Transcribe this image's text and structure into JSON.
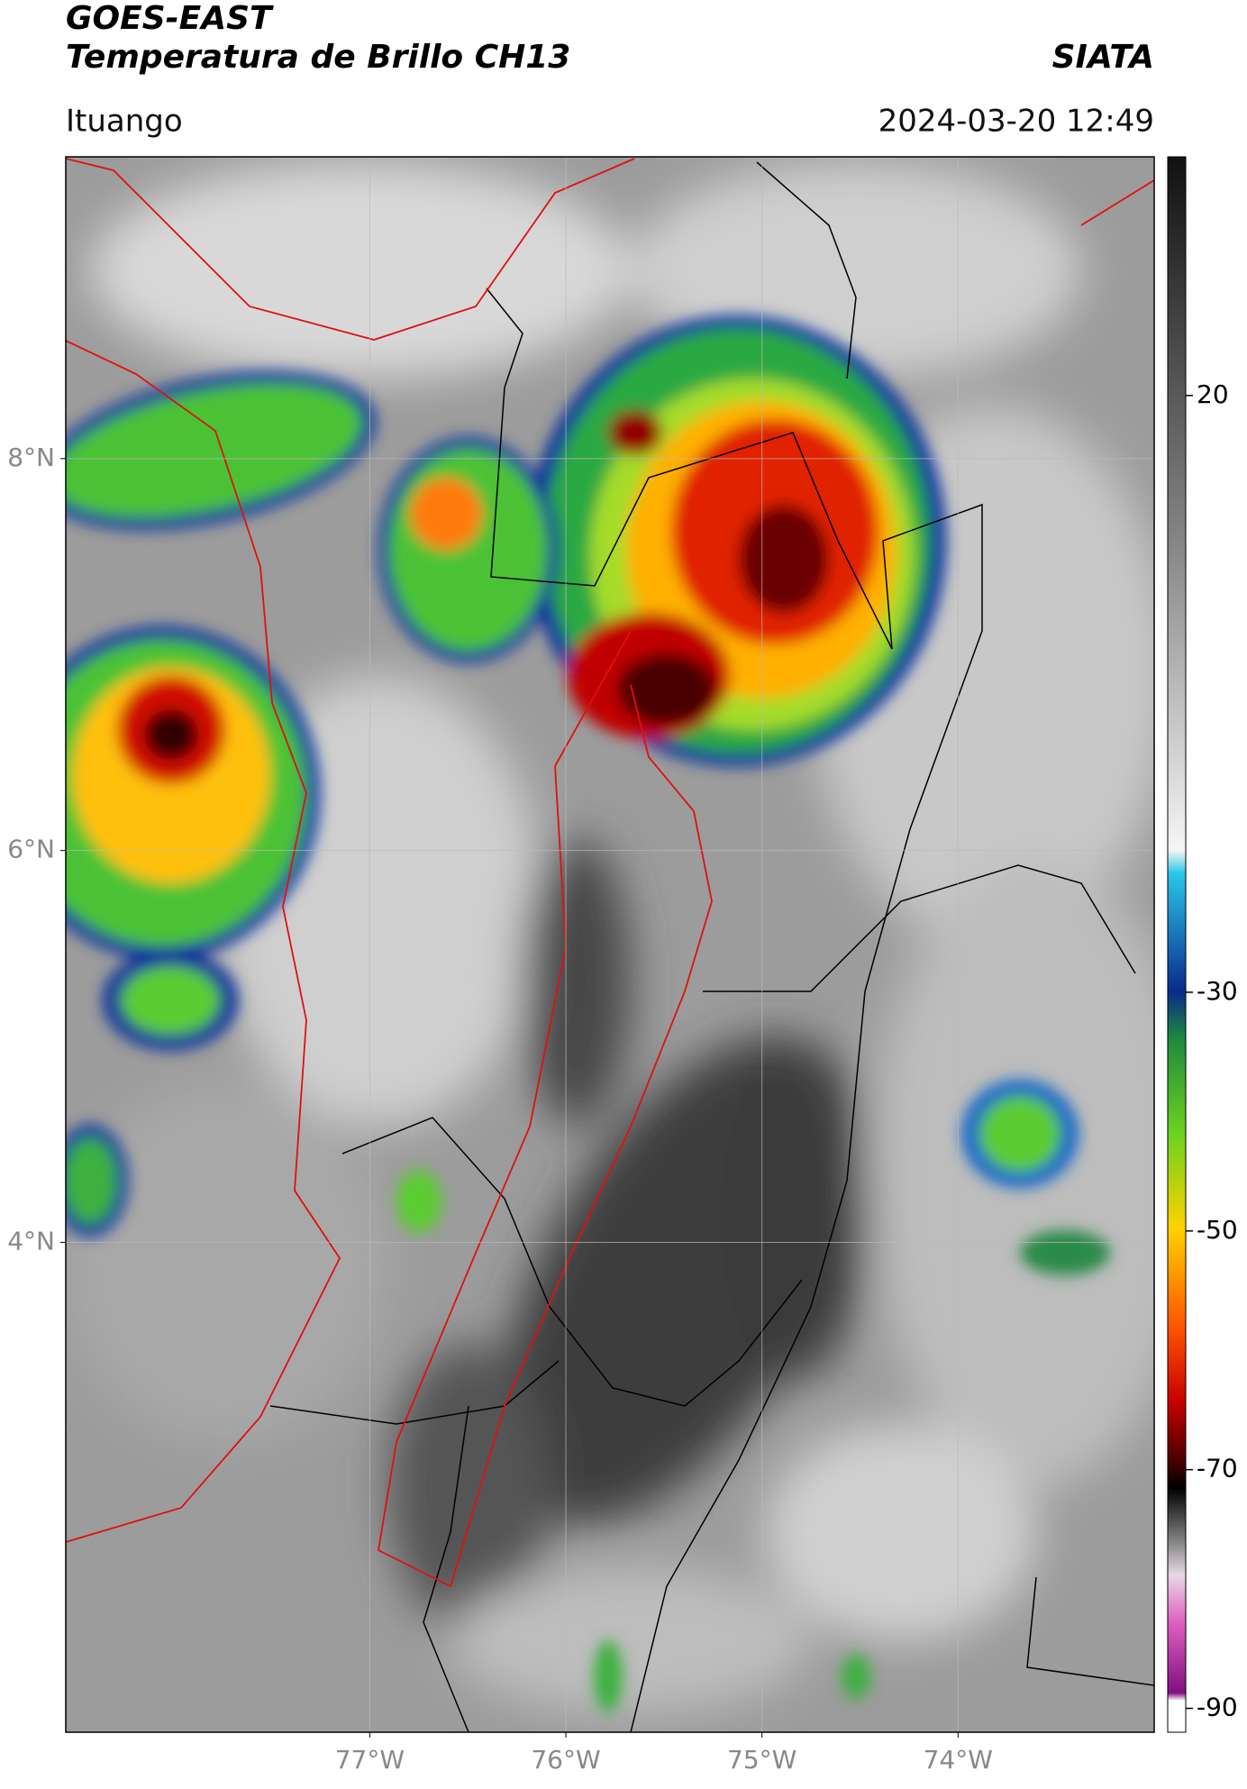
{
  "header": {
    "title": "GOES-EAST",
    "subtitle": "Temperatura de Brillo CH13",
    "source": "SIATA",
    "location": "Ituango",
    "datetime": "2024-03-20 12:49"
  },
  "map": {
    "xlim": [
      -78.55,
      -73.0
    ],
    "ylim": [
      1.5,
      9.54
    ],
    "xticks": [
      {
        "value": -77,
        "label": "77°W"
      },
      {
        "value": -76,
        "label": "76°W"
      },
      {
        "value": -75,
        "label": "75°W"
      },
      {
        "value": -74,
        "label": "74°W"
      }
    ],
    "yticks": [
      {
        "value": 8,
        "label": "8°N"
      },
      {
        "value": 6,
        "label": "6°N"
      },
      {
        "value": 4,
        "label": "4°N"
      }
    ],
    "grid": true
  },
  "colorbar": {
    "lim": [
      -92,
      40
    ],
    "ticks": [
      20,
      -30,
      -50,
      -70,
      -90
    ]
  }
}
